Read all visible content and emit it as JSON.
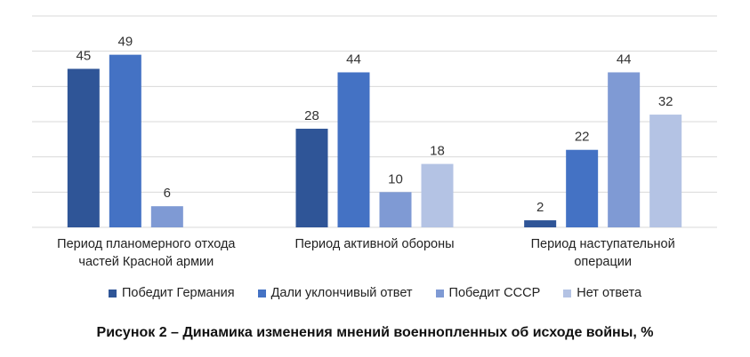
{
  "chart_data": {
    "type": "bar",
    "categories": [
      [
        "Период планомерного отхода",
        "частей Красной армии"
      ],
      [
        "Период активной обороны"
      ],
      [
        "Период наступательной",
        "операции"
      ]
    ],
    "series": [
      {
        "name": "Победит Германия",
        "color": "#2f5597",
        "values": [
          45,
          28,
          2
        ]
      },
      {
        "name": "Дали уклончивый ответ",
        "color": "#4472c4",
        "values": [
          49,
          44,
          22
        ]
      },
      {
        "name": "Победит СССР",
        "color": "#7f9ad4",
        "values": [
          6,
          10,
          44
        ]
      },
      {
        "name": "Нет ответа",
        "color": "#b4c3e4",
        "values": [
          null,
          18,
          32
        ]
      }
    ],
    "ylim": [
      0,
      60
    ],
    "grid": true,
    "legend": "bottom",
    "title": "Рисунок 2 – Динамика изменения мнений военнопленных об исходе войны, %"
  }
}
